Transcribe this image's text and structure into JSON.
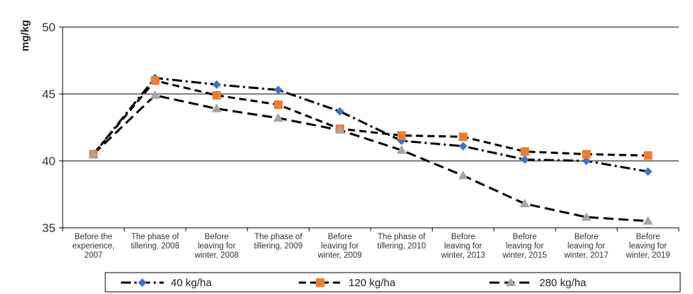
{
  "chart_data": {
    "type": "line",
    "title": "",
    "ylabel": "mg/kg",
    "xlabel": "",
    "ylim": [
      35,
      50
    ],
    "yticks": [
      35,
      40,
      45,
      50
    ],
    "grid": "horizontal",
    "legend_position": "bottom",
    "categories": [
      [
        "Before the",
        "experience,",
        "2007"
      ],
      [
        "The phase of",
        "tillering, 2008"
      ],
      [
        "Before",
        "leaving for",
        "winter, 2008"
      ],
      [
        "The phase of",
        "tillering, 2009"
      ],
      [
        "Before",
        "leaving for",
        "winter, 2009"
      ],
      [
        "The phase of",
        "tillering, 2010"
      ],
      [
        "Before",
        "leaving for",
        "winter, 2013"
      ],
      [
        "Before",
        "leaving for",
        "winter, 2015"
      ],
      [
        "Before",
        "leaving for",
        "winter, 2017"
      ],
      [
        "Before",
        "leaving for",
        "winter, 2019"
      ]
    ],
    "series": [
      {
        "name": "40 kg/ha",
        "color": "#4472C4",
        "marker": "diamond",
        "dash": "dashdot",
        "values": [
          40.5,
          46.2,
          45.7,
          45.3,
          43.7,
          41.5,
          41.1,
          40.1,
          40.0,
          39.2
        ]
      },
      {
        "name": "120 kg/ha",
        "color": "#ED7D31",
        "marker": "square",
        "dash": "dash",
        "values": [
          40.5,
          46.0,
          44.9,
          44.2,
          42.4,
          41.9,
          41.8,
          40.7,
          40.5,
          40.4
        ]
      },
      {
        "name": "280 kg/ha",
        "color": "#A5A5A5",
        "marker": "triangle",
        "dash": "longdash",
        "values": [
          40.5,
          44.9,
          43.9,
          43.2,
          42.3,
          40.8,
          38.9,
          36.8,
          35.8,
          35.5
        ]
      }
    ]
  }
}
